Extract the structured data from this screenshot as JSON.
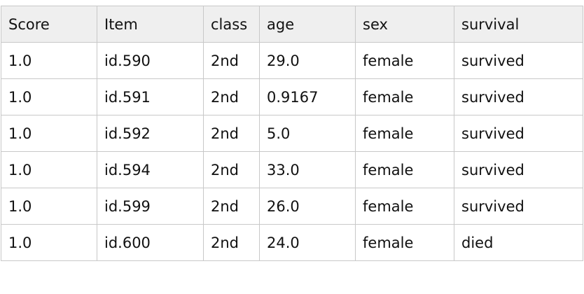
{
  "table": {
    "header": [
      "Score",
      "Item",
      "class",
      "age",
      "sex",
      "survival"
    ],
    "rows": [
      [
        "1.0",
        "id.590",
        "2nd",
        "29.0",
        "female",
        "survived"
      ],
      [
        "1.0",
        "id.591",
        "2nd",
        "0.9167",
        "female",
        "survived"
      ],
      [
        "1.0",
        "id.592",
        "2nd",
        "5.0",
        "female",
        "survived"
      ],
      [
        "1.0",
        "id.594",
        "2nd",
        "33.0",
        "female",
        "survived"
      ],
      [
        "1.0",
        "id.599",
        "2nd",
        "26.0",
        "female",
        "survived"
      ],
      [
        "1.0",
        "id.600",
        "2nd",
        "24.0",
        "female",
        "died"
      ]
    ]
  }
}
